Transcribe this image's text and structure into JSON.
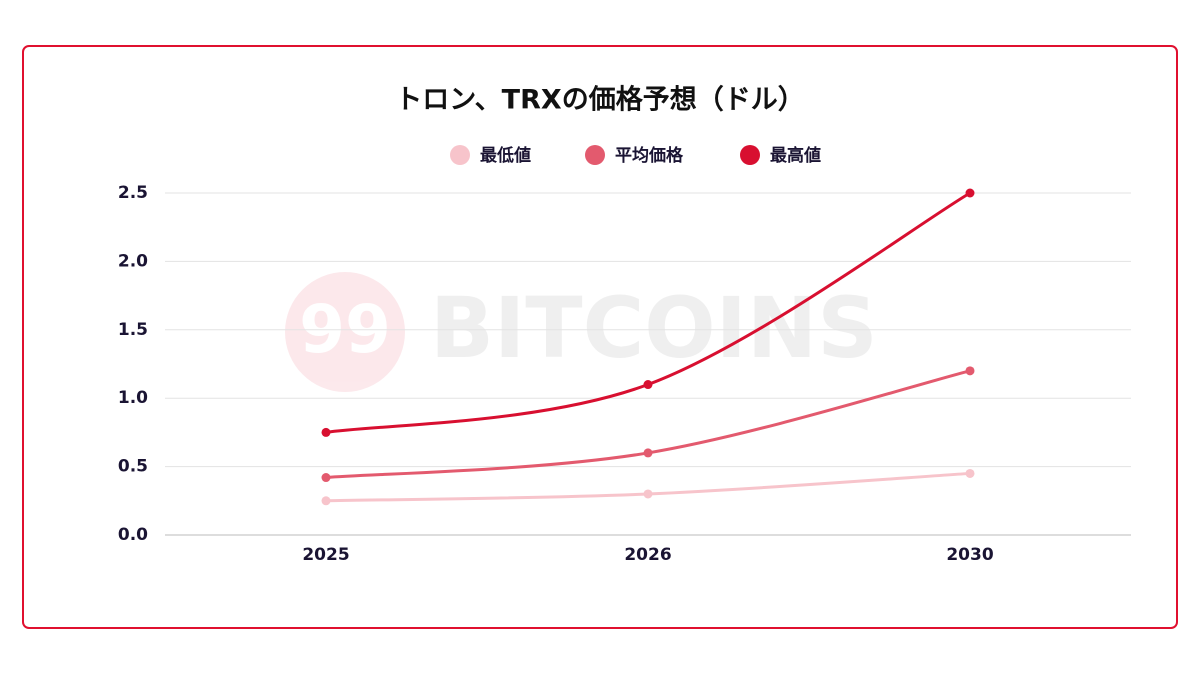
{
  "chart_data": {
    "type": "line",
    "title": "トロン、TRXの価格予想（ドル）",
    "watermark": {
      "logo": "99",
      "text": "BITCOINS"
    },
    "categories": [
      "2025",
      "2026",
      "2030"
    ],
    "series": [
      {
        "name": "最低値",
        "color": "#f7c4cb",
        "values": [
          0.25,
          0.3,
          0.45
        ]
      },
      {
        "name": "平均価格",
        "color": "#e35a6e",
        "values": [
          0.42,
          0.6,
          1.2
        ]
      },
      {
        "name": "最高値",
        "color": "#d80f30",
        "values": [
          0.75,
          1.1,
          2.5
        ]
      }
    ],
    "ylim": [
      0,
      2.5
    ],
    "yticks": [
      {
        "value": 0,
        "label": "0.0"
      },
      0.5,
      {
        "value": 1,
        "label": "1.0"
      },
      1.5,
      {
        "value": 2,
        "label": "2.0"
      },
      2.5
    ],
    "grid": true,
    "legend": "top"
  }
}
